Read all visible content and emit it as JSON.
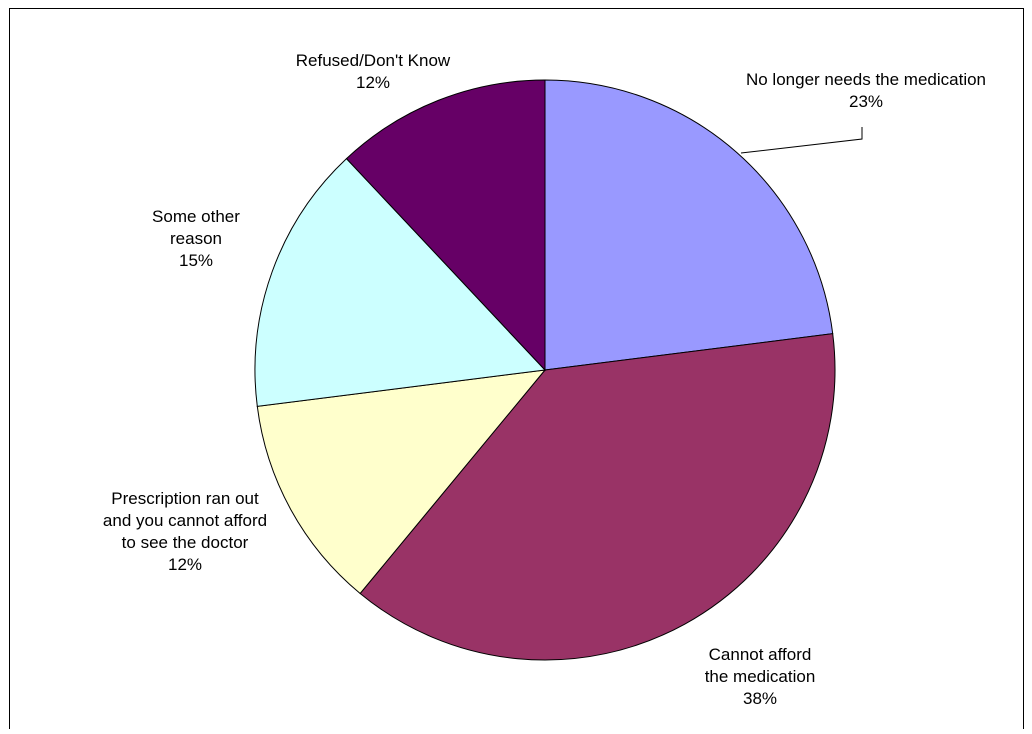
{
  "chart_data": {
    "type": "pie",
    "title": "",
    "start_angle_deg": 0,
    "direction": "clockwise",
    "slices": [
      {
        "label_lines": [
          "No longer needs the medication"
        ],
        "percent_label": "23%",
        "value": 23,
        "color": "#9999ff"
      },
      {
        "label_lines": [
          "Cannot afford",
          "the medication"
        ],
        "percent_label": "38%",
        "value": 38,
        "color": "#993366"
      },
      {
        "label_lines": [
          "Prescription ran out",
          "and you cannot afford",
          "to see the doctor"
        ],
        "percent_label": "12%",
        "value": 12,
        "color": "#ffffcc"
      },
      {
        "label_lines": [
          "Some other",
          "reason"
        ],
        "percent_label": "15%",
        "value": 15,
        "color": "#ccffff"
      },
      {
        "label_lines": [
          "Refused/Don't Know"
        ],
        "percent_label": "12%",
        "value": 12,
        "color": "#660066"
      }
    ]
  }
}
